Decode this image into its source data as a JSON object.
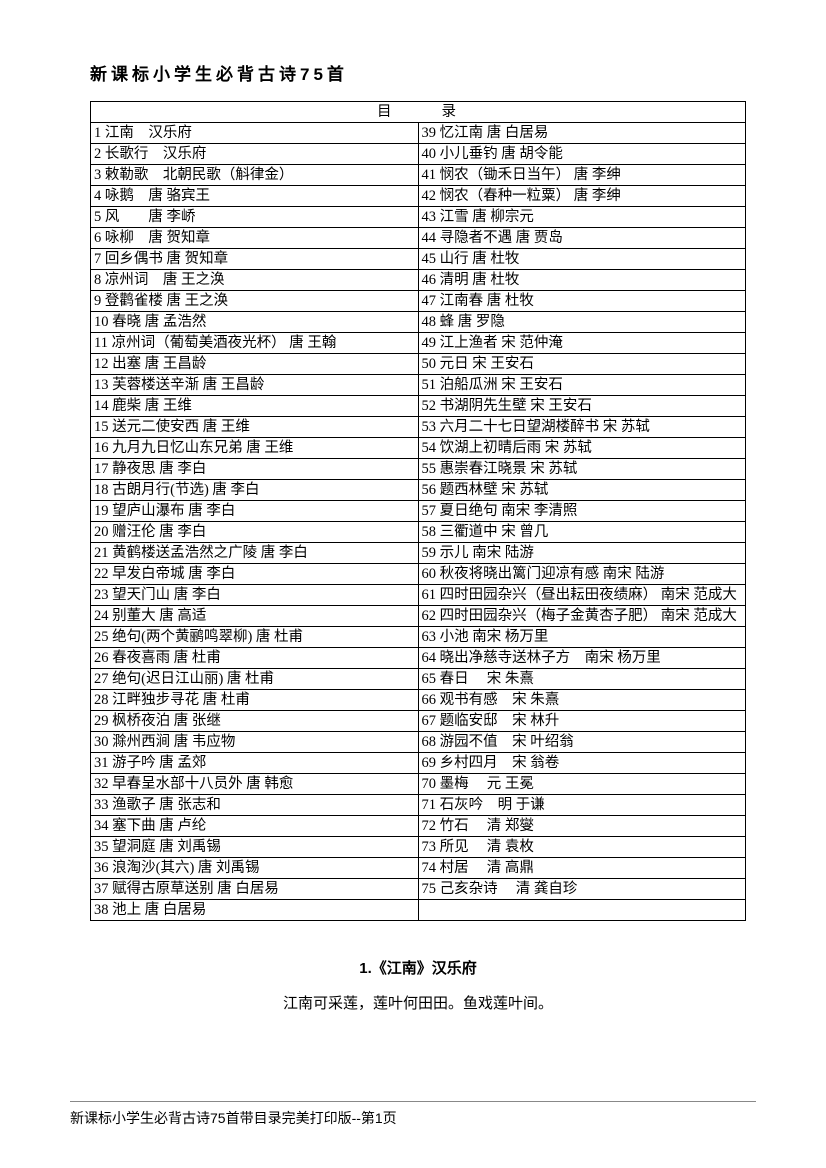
{
  "title": "新课标小学生必背古诗75首",
  "toc_header": "目录",
  "rows": [
    {
      "l": "1 江南　汉乐府",
      "r": "39 忆江南 唐 白居易"
    },
    {
      "l": "2 长歌行　汉乐府",
      "r": "40 小儿垂钓 唐 胡令能"
    },
    {
      "l": "3 敕勒歌　北朝民歌（斛律金）",
      "r": "41 悯农（锄禾日当午） 唐 李绅"
    },
    {
      "l": "4 咏鹅　唐 骆宾王",
      "r": "42 悯农（春种一粒粟） 唐 李绅"
    },
    {
      "l": "5 风　　唐 李峤",
      "r": "43 江雪 唐 柳宗元"
    },
    {
      "l": "6 咏柳　唐 贺知章",
      "r": "44 寻隐者不遇 唐 贾岛"
    },
    {
      "l": "7 回乡偶书 唐 贺知章",
      "r": "45 山行 唐 杜牧"
    },
    {
      "l": "8 凉州词　唐 王之涣",
      "r": "46 清明 唐 杜牧"
    },
    {
      "l": "9 登鹳雀楼 唐 王之涣",
      "r": "47 江南春 唐 杜牧"
    },
    {
      "l": "10 春晓 唐 孟浩然",
      "r": "48 蜂 唐 罗隐"
    },
    {
      "l": "11 凉州词（葡萄美酒夜光杯） 唐 王翰",
      "r": "49 江上渔者 宋 范仲淹"
    },
    {
      "l": "12 出塞 唐 王昌龄",
      "r": "50 元日 宋 王安石"
    },
    {
      "l": "13 芙蓉楼送辛渐 唐 王昌龄",
      "r": "51 泊船瓜洲 宋 王安石"
    },
    {
      "l": "14 鹿柴 唐 王维",
      "r": "52 书湖阴先生壁 宋 王安石"
    },
    {
      "l": "15 送元二使安西 唐 王维",
      "r": "53 六月二十七日望湖楼醉书 宋 苏轼"
    },
    {
      "l": "16 九月九日忆山东兄弟 唐 王维",
      "r": "54 饮湖上初晴后雨 宋 苏轼"
    },
    {
      "l": "17 静夜思 唐 李白",
      "r": "55 惠崇春江晓景 宋 苏轼"
    },
    {
      "l": "18 古朗月行(节选) 唐 李白",
      "r": "56 题西林壁 宋 苏轼"
    },
    {
      "l": "19 望庐山瀑布 唐 李白",
      "r": "57 夏日绝句 南宋 李清照"
    },
    {
      "l": "20 赠汪伦 唐 李白",
      "r": "58 三衢道中 宋 曾几"
    },
    {
      "l": "21 黄鹤楼送孟浩然之广陵 唐 李白",
      "r": "59 示儿 南宋 陆游"
    },
    {
      "l": "22 早发白帝城 唐 李白",
      "r": "60 秋夜将晓出篱门迎凉有感 南宋 陆游"
    },
    {
      "l": "23 望天门山 唐 李白",
      "r": "61 四时田园杂兴（昼出耘田夜绩麻） 南宋 范成大"
    },
    {
      "l": "24 别董大 唐 高适",
      "r": "62 四时田园杂兴（梅子金黄杏子肥） 南宋 范成大"
    },
    {
      "l": "25 绝句(两个黄鹂鸣翠柳) 唐 杜甫",
      "r": "63 小池 南宋 杨万里"
    },
    {
      "l": "26 春夜喜雨 唐 杜甫",
      "r": "64 晓出净慈寺送林子方　南宋 杨万里"
    },
    {
      "l": "27 绝句(迟日江山丽) 唐 杜甫",
      "r": "65 春日　 宋 朱熹"
    },
    {
      "l": "28 江畔独步寻花 唐 杜甫",
      "r": "66 观书有感　宋 朱熹"
    },
    {
      "l": "29 枫桥夜泊 唐 张继",
      "r": "67 题临安邸　宋 林升"
    },
    {
      "l": "30 滁州西涧 唐 韦应物",
      "r": "68 游园不值　宋 叶绍翁"
    },
    {
      "l": "31 游子吟 唐 孟郊",
      "r": "69 乡村四月　宋 翁卷"
    },
    {
      "l": "32 早春呈水部十八员外 唐 韩愈",
      "r": "70 墨梅　 元 王冕"
    },
    {
      "l": "33 渔歌子 唐 张志和",
      "r": "71 石灰吟　明 于谦"
    },
    {
      "l": "34 塞下曲 唐 卢纶",
      "r": "72 竹石　 清 郑燮"
    },
    {
      "l": "35 望洞庭 唐 刘禹锡",
      "r": "73 所见　 清 袁枚"
    },
    {
      "l": "36 浪淘沙(其六) 唐 刘禹锡",
      "r": "74 村居　 清 高鼎"
    },
    {
      "l": "37 赋得古原草送别 唐 白居易",
      "r": "75 己亥杂诗　 清 龚自珍"
    },
    {
      "l": "38 池上 唐 白居易",
      "r": ""
    }
  ],
  "poem_title": "1.《江南》汉乐府",
  "poem_text": "江南可采莲，莲叶何田田。鱼戏莲叶间。",
  "footer": "新课标小学生必背古诗75首带目录完美打印版--第1页"
}
